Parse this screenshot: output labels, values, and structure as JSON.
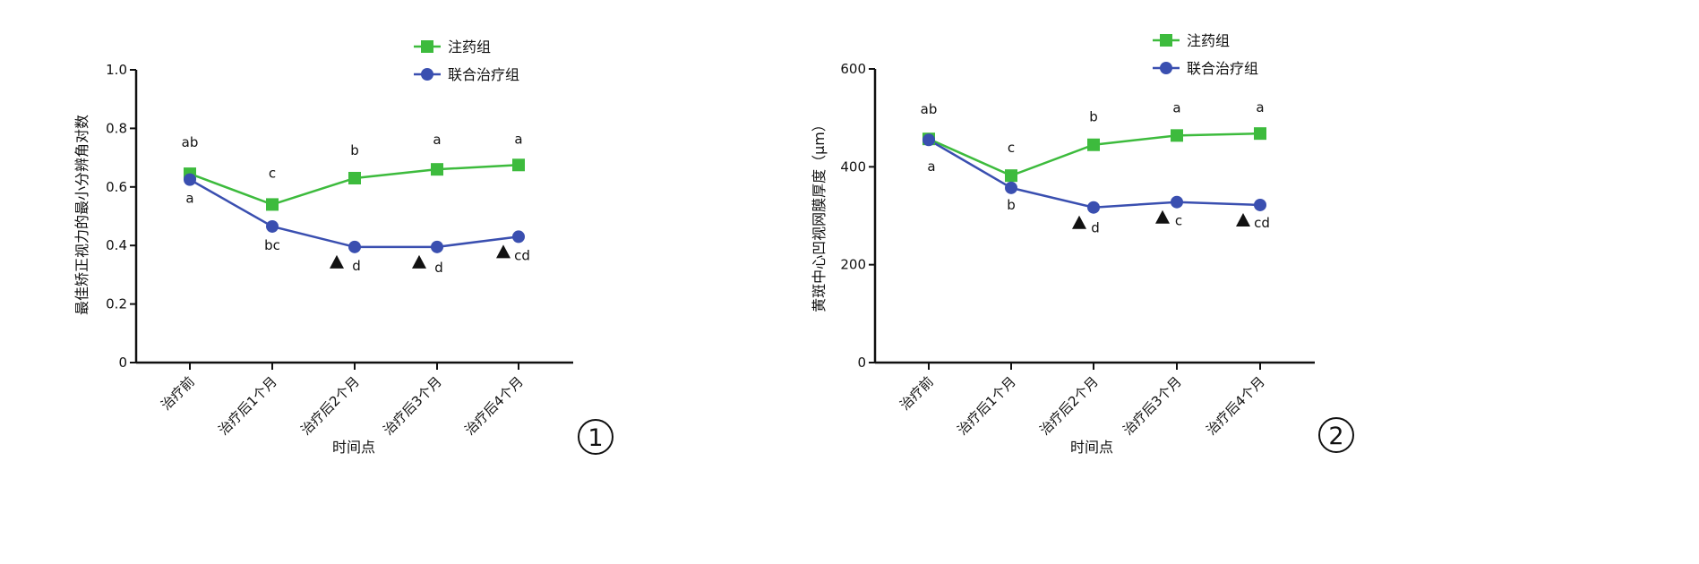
{
  "colors": {
    "injection_group": "#3dbb3d",
    "combined_group": "#3a4fb0",
    "axis": "#111111",
    "marker": "#111111"
  },
  "chart_data": [
    {
      "type": "line",
      "figure_number": "1",
      "ylabel": "最佳矫正视力的最小分辨角对数",
      "xlabel": "时间点",
      "categories": [
        "治疗前",
        "治疗后1个月",
        "治疗后2个月",
        "治疗后3个月",
        "治疗后4个月"
      ],
      "ylim": [
        0,
        1.0
      ],
      "yticks": [
        "0",
        "0.2",
        "0.4",
        "0.6",
        "0.8",
        "1.0"
      ],
      "ytick_values": [
        0,
        0.2,
        0.4,
        0.6,
        0.8,
        1.0
      ],
      "legend_position": "top-right",
      "series": [
        {
          "name": "注药组",
          "marker": "square",
          "values": [
            0.645,
            0.54,
            0.63,
            0.66,
            0.675
          ],
          "labels": [
            "ab",
            "c",
            "b",
            "a",
            "a"
          ]
        },
        {
          "name": "联合治疗组",
          "marker": "circle",
          "values": [
            0.625,
            0.465,
            0.395,
            0.395,
            0.43
          ],
          "labels": [
            "a",
            "bc",
            "d",
            "d",
            "cd"
          ]
        }
      ],
      "triangle_markers_at": [
        2,
        3,
        4
      ]
    },
    {
      "type": "line",
      "figure_number": "2",
      "ylabel": "黄斑中心凹视网膜厚度（μm）",
      "xlabel": "时间点",
      "categories": [
        "治疗前",
        "治疗后1个月",
        "治疗后2个月",
        "治疗后3个月",
        "治疗后4个月"
      ],
      "ylim": [
        0,
        600
      ],
      "yticks": [
        "0",
        "200",
        "400",
        "600"
      ],
      "ytick_values": [
        0,
        200,
        400,
        600
      ],
      "legend_position": "top-right",
      "series": [
        {
          "name": "注药组",
          "marker": "square",
          "values": [
            457,
            382,
            445,
            464,
            468
          ],
          "labels": [
            "ab",
            "c",
            "b",
            "a",
            "a"
          ]
        },
        {
          "name": "联合治疗组",
          "marker": "circle",
          "values": [
            455,
            357,
            317,
            328,
            322
          ],
          "labels": [
            "a",
            "b",
            "d",
            "c",
            "cd"
          ]
        }
      ],
      "triangle_markers_at": [
        2,
        3,
        4
      ]
    }
  ]
}
